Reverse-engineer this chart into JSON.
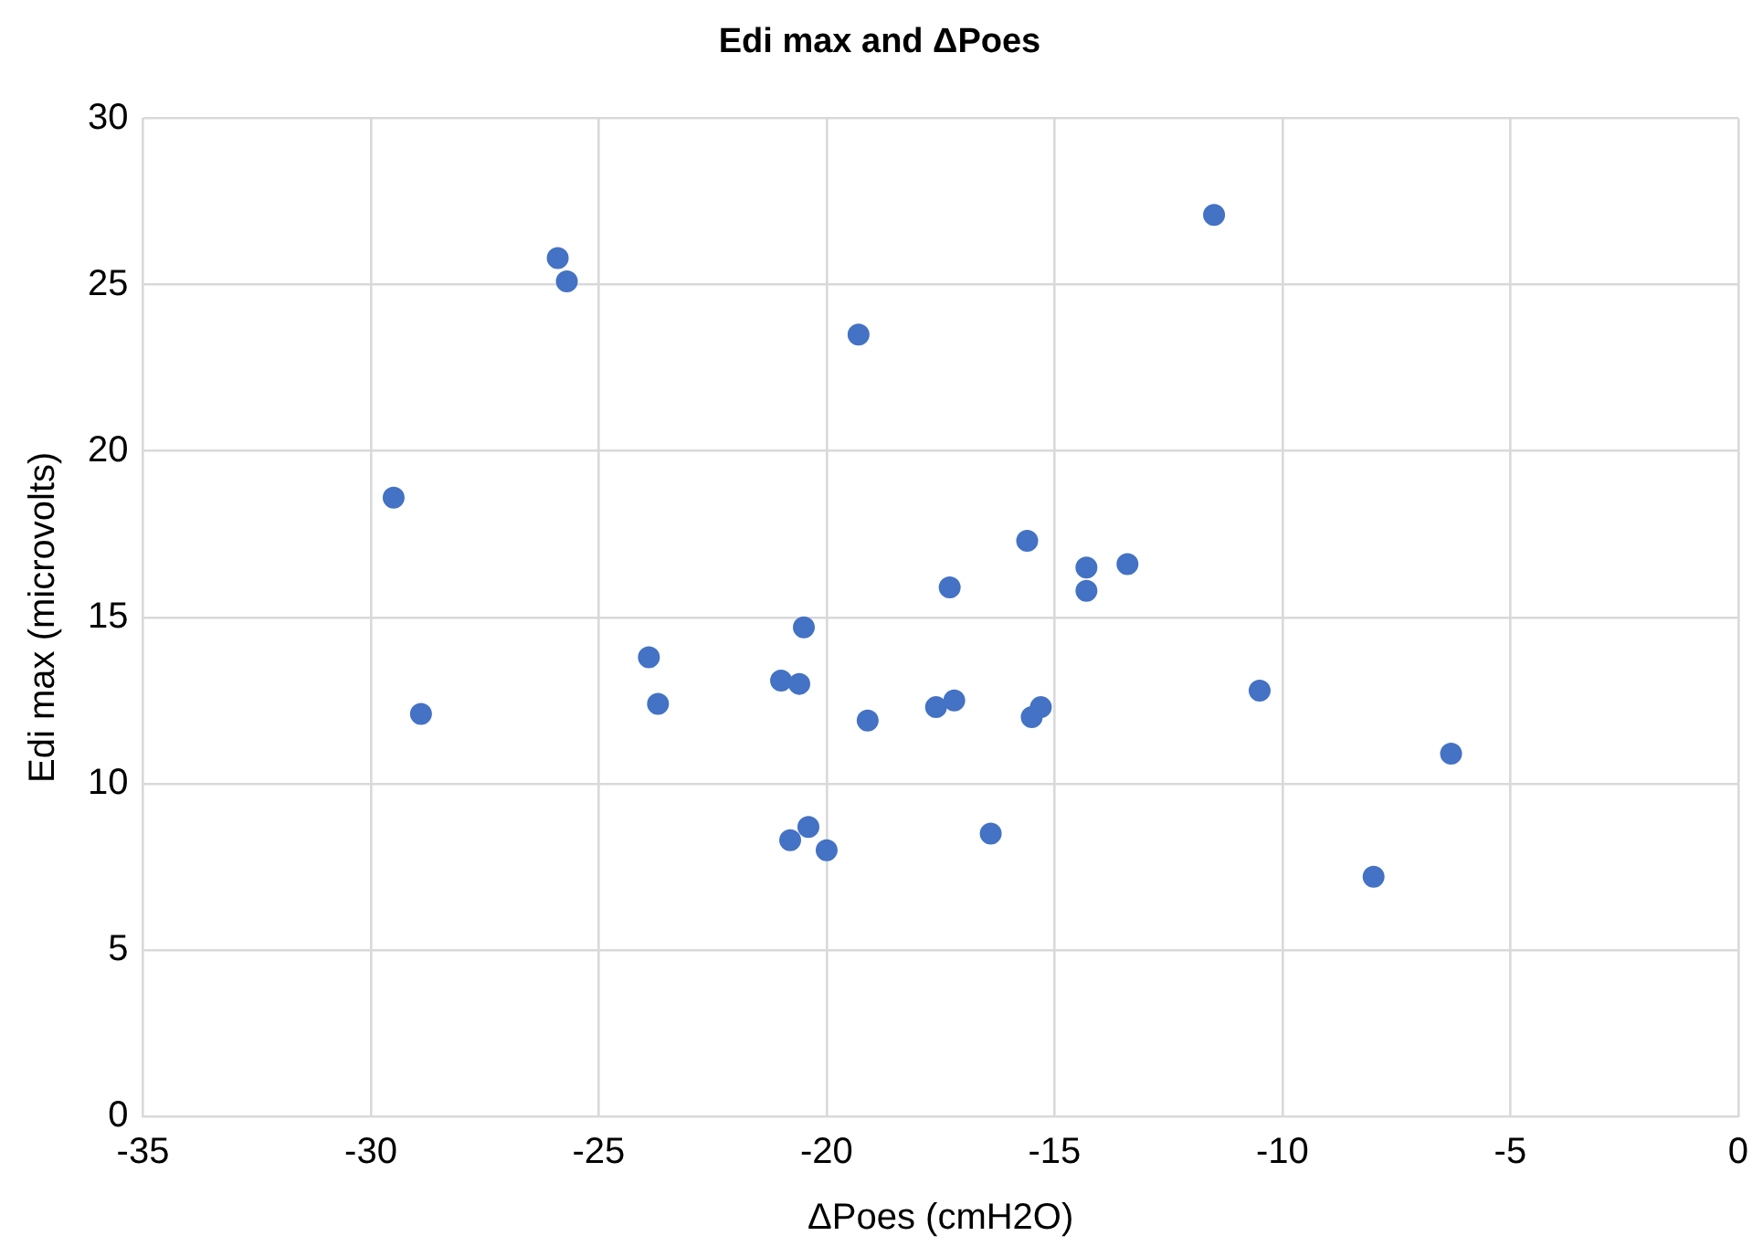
{
  "chart_data": {
    "type": "scatter",
    "title": "Edi max and ΔPoes",
    "xlabel": "ΔPoes (cmH2O)",
    "ylabel": "Edi max (microvolts)",
    "xlim": [
      -35,
      0
    ],
    "xticks": [
      -35,
      -30,
      -25,
      -20,
      -15,
      -10,
      -5,
      0
    ],
    "ylim": [
      0,
      30
    ],
    "yticks": [
      0,
      5,
      10,
      15,
      20,
      25,
      30
    ],
    "grid": true,
    "legend": false,
    "marker": "circle",
    "series": [
      {
        "color": "#4472c4",
        "x": [
          -29.5,
          -28.9,
          -25.9,
          -25.7,
          -23.9,
          -23.7,
          -21.0,
          -20.8,
          -20.6,
          -20.5,
          -20.4,
          -20.0,
          -19.3,
          -19.1,
          -17.6,
          -17.3,
          -17.2,
          -16.4,
          -15.6,
          -15.5,
          -15.3,
          -14.3,
          -14.3,
          -13.4,
          -11.5,
          -10.5,
          -8.0,
          -6.3
        ],
        "values": [
          18.6,
          12.1,
          25.8,
          25.1,
          13.8,
          12.4,
          13.1,
          8.3,
          13.0,
          14.7,
          8.7,
          8.0,
          23.5,
          11.9,
          12.3,
          15.9,
          12.5,
          8.5,
          17.3,
          12.0,
          12.3,
          16.5,
          15.8,
          16.6,
          27.1,
          12.8,
          7.2,
          10.9
        ]
      }
    ]
  }
}
